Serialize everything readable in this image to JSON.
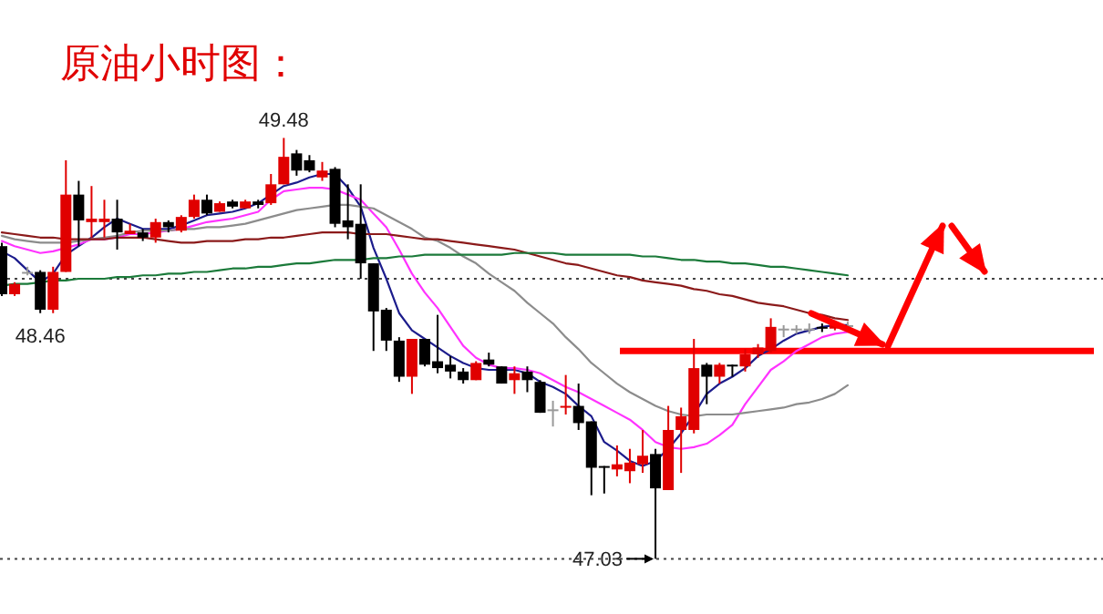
{
  "chart_data": {
    "type": "candlestick",
    "title": "原油小时图：",
    "categories": [
      null,
      null,
      null,
      null,
      null,
      null,
      null,
      null,
      null,
      null,
      null,
      null,
      null,
      null,
      null,
      null,
      null,
      null,
      null,
      null,
      null,
      null,
      null,
      null,
      null,
      null,
      null,
      null,
      null,
      null,
      null,
      null,
      null,
      null,
      null,
      null,
      null,
      null,
      null,
      null,
      null,
      null,
      null,
      null,
      null,
      null,
      null,
      null,
      null,
      null,
      null,
      null,
      null,
      null,
      null,
      null,
      null,
      null,
      null,
      null,
      null,
      null,
      null,
      null,
      null,
      null,
      null
    ],
    "ohlc": [
      [
        48.85,
        48.87,
        48.56,
        48.57
      ],
      [
        48.57,
        48.64,
        48.56,
        48.63
      ],
      [
        48.7,
        48.73,
        48.68,
        48.7
      ],
      [
        48.7,
        48.71,
        48.46,
        48.48
      ],
      [
        48.48,
        48.73,
        48.46,
        48.7
      ],
      [
        48.7,
        49.35,
        48.7,
        49.15
      ],
      [
        49.15,
        49.23,
        48.85,
        49.0
      ],
      [
        48.99,
        49.2,
        48.9,
        49.01
      ],
      [
        48.99,
        49.12,
        48.9,
        49.01
      ],
      [
        49.01,
        49.12,
        48.83,
        48.93
      ],
      [
        48.92,
        48.98,
        48.92,
        48.94
      ],
      [
        48.93,
        48.95,
        48.88,
        48.9
      ],
      [
        48.9,
        49.01,
        48.87,
        48.99
      ],
      [
        48.99,
        49.0,
        48.93,
        48.96
      ],
      [
        48.94,
        49.03,
        48.93,
        49.02
      ],
      [
        49.02,
        49.15,
        49.01,
        49.12
      ],
      [
        49.12,
        49.15,
        49.03,
        49.04
      ],
      [
        49.05,
        49.11,
        49.05,
        49.1
      ],
      [
        49.11,
        49.12,
        49.07,
        49.08
      ],
      [
        49.07,
        49.12,
        49.07,
        49.11
      ],
      [
        49.11,
        49.12,
        49.07,
        49.09
      ],
      [
        49.1,
        49.27,
        49.09,
        49.21
      ],
      [
        49.21,
        49.48,
        49.21,
        49.37
      ],
      [
        49.39,
        49.41,
        49.26,
        49.29
      ],
      [
        49.35,
        49.38,
        49.28,
        49.29
      ],
      [
        49.25,
        49.34,
        49.23,
        49.29
      ],
      [
        49.3,
        49.31,
        48.96,
        48.98
      ],
      [
        49.0,
        49.21,
        48.89,
        48.96
      ],
      [
        48.98,
        49.21,
        48.66,
        48.75
      ],
      [
        48.75,
        48.75,
        48.24,
        48.47
      ],
      [
        48.48,
        48.49,
        48.24,
        48.3
      ],
      [
        48.3,
        48.32,
        48.06,
        48.09
      ],
      [
        48.09,
        48.31,
        47.99,
        48.31
      ],
      [
        48.31,
        48.31,
        48.15,
        48.16
      ],
      [
        48.18,
        48.45,
        48.11,
        48.14
      ],
      [
        48.16,
        48.21,
        48.08,
        48.12
      ],
      [
        48.12,
        48.14,
        48.05,
        48.07
      ],
      [
        48.07,
        48.18,
        48.07,
        48.17
      ],
      [
        48.19,
        48.23,
        48.15,
        48.16
      ],
      [
        48.15,
        48.15,
        48.05,
        48.05
      ],
      [
        48.07,
        48.15,
        47.99,
        48.11
      ],
      [
        48.12,
        48.15,
        48.0,
        48.07
      ],
      [
        48.06,
        48.07,
        47.88,
        47.88
      ],
      [
        47.9,
        47.95,
        47.8,
        47.9
      ],
      [
        47.91,
        48.1,
        47.87,
        47.92
      ],
      [
        47.92,
        48.05,
        47.78,
        47.82
      ],
      [
        47.83,
        47.83,
        47.4,
        47.56
      ],
      [
        47.57,
        47.57,
        47.41,
        47.56
      ],
      [
        47.55,
        47.69,
        47.51,
        47.58
      ],
      [
        47.54,
        47.67,
        47.47,
        47.59
      ],
      [
        47.58,
        47.78,
        47.53,
        47.63
      ],
      [
        47.64,
        47.67,
        47.03,
        47.44
      ],
      [
        47.43,
        47.92,
        47.43,
        47.78
      ],
      [
        47.78,
        47.91,
        47.53,
        47.86
      ],
      [
        47.78,
        48.31,
        47.76,
        48.14
      ],
      [
        48.16,
        48.17,
        47.93,
        48.09
      ],
      [
        48.09,
        48.17,
        48.05,
        48.16
      ],
      [
        48.16,
        48.16,
        48.09,
        48.15
      ],
      [
        48.15,
        48.25,
        48.12,
        48.22
      ],
      [
        48.22,
        48.28,
        48.2,
        48.26
      ],
      [
        48.24,
        48.43,
        48.23,
        48.38
      ],
      [
        48.37,
        48.39,
        48.32,
        48.37
      ],
      [
        48.37,
        48.39,
        48.34,
        48.37
      ],
      [
        48.37,
        48.4,
        48.34,
        48.37
      ],
      [
        48.38,
        48.4,
        48.35,
        48.37
      ],
      [
        48.37,
        48.41,
        48.36,
        48.4
      ],
      [
        48.39,
        48.41,
        48.36,
        48.39
      ]
    ],
    "colors": [
      "#000000",
      "#e00000",
      "#999999",
      "#000000",
      "#e00000",
      "#e00000",
      "#000000",
      "#e00000",
      "#e00000",
      "#000000",
      "#e00000",
      "#000000",
      "#e00000",
      "#000000",
      "#e00000",
      "#e00000",
      "#000000",
      "#e00000",
      "#000000",
      "#e00000",
      "#000000",
      "#e00000",
      "#e00000",
      "#000000",
      "#000000",
      "#e00000",
      "#000000",
      "#000000",
      "#000000",
      "#000000",
      "#000000",
      "#000000",
      "#e00000",
      "#000000",
      "#000000",
      "#000000",
      "#000000",
      "#e00000",
      "#000000",
      "#000000",
      "#e00000",
      "#000000",
      "#000000",
      "#999999",
      "#e00000",
      "#000000",
      "#000000",
      "#000000",
      "#e00000",
      "#e00000",
      "#e00000",
      "#000000",
      "#e00000",
      "#e00000",
      "#e00000",
      "#000000",
      "#e00000",
      "#000000",
      "#e00000",
      "#e00000",
      "#e00000",
      "#999999",
      "#999999",
      "#999999",
      "#000000",
      "#e00000",
      "#999999"
    ],
    "series": [
      {
        "type": "line",
        "color": "#1c1c8c",
        "values": [
          48.82,
          48.78,
          48.71,
          48.64,
          48.69,
          48.8,
          48.85,
          48.9,
          48.96,
          49.01,
          48.98,
          48.95,
          48.95,
          48.95,
          48.97,
          49.0,
          49.03,
          49.04,
          49.05,
          49.07,
          49.1,
          49.15,
          49.2,
          49.22,
          49.25,
          49.27,
          49.27,
          49.19,
          49.08,
          48.84,
          48.66,
          48.46,
          48.36,
          48.31,
          48.26,
          48.21,
          48.17,
          48.14,
          48.13,
          48.13,
          48.13,
          48.11,
          48.06,
          48.03,
          47.99,
          47.92,
          47.86,
          47.71,
          47.66,
          47.6,
          47.57,
          47.6,
          47.67,
          47.76,
          47.87,
          47.99,
          48.05,
          48.09,
          48.14,
          48.21,
          48.25,
          48.3,
          48.34,
          48.36,
          48.38,
          48.39,
          48.39
        ]
      },
      {
        "type": "line",
        "color": "#ff33ff",
        "values": [
          48.88,
          48.85,
          48.83,
          48.81,
          48.82,
          48.84,
          48.86,
          48.89,
          48.89,
          48.9,
          48.92,
          48.92,
          48.93,
          48.94,
          48.95,
          48.97,
          48.99,
          49.0,
          49.01,
          49.03,
          49.05,
          49.12,
          49.17,
          49.18,
          49.19,
          49.19,
          49.18,
          49.15,
          49.12,
          49.04,
          48.96,
          48.83,
          48.69,
          48.58,
          48.49,
          48.38,
          48.27,
          48.2,
          48.16,
          48.14,
          48.14,
          48.13,
          48.11,
          48.07,
          48.03,
          48.0,
          47.96,
          47.92,
          47.88,
          47.84,
          47.78,
          47.71,
          47.68,
          47.67,
          47.68,
          47.7,
          47.75,
          47.81,
          47.93,
          48.03,
          48.13,
          48.18,
          48.24,
          48.28,
          48.32,
          48.34,
          48.35
        ]
      },
      {
        "type": "line",
        "color": "#8c8c8c",
        "values": [
          48.91,
          48.89,
          48.88,
          48.87,
          48.87,
          48.87,
          48.88,
          48.89,
          48.9,
          48.91,
          48.93,
          48.94,
          48.94,
          48.94,
          48.95,
          48.95,
          48.96,
          48.96,
          48.97,
          48.98,
          49.0,
          49.02,
          49.04,
          49.06,
          49.07,
          49.08,
          49.09,
          49.09,
          49.08,
          49.07,
          49.03,
          48.99,
          48.95,
          48.9,
          48.88,
          48.84,
          48.79,
          48.75,
          48.69,
          48.64,
          48.59,
          48.52,
          48.46,
          48.4,
          48.32,
          48.25,
          48.17,
          48.11,
          48.05,
          48.0,
          47.96,
          47.92,
          47.89,
          47.87,
          47.86,
          47.87,
          47.87,
          47.87,
          47.88,
          47.89,
          47.9,
          47.91,
          47.93,
          47.94,
          47.96,
          47.99,
          48.04
        ]
      },
      {
        "type": "line",
        "color": "#8b1a1a",
        "values": [
          48.93,
          48.92,
          48.91,
          48.9,
          48.9,
          48.89,
          48.89,
          48.89,
          48.89,
          48.9,
          48.9,
          48.9,
          48.89,
          48.88,
          48.87,
          48.87,
          48.88,
          48.88,
          48.88,
          48.89,
          48.89,
          48.9,
          48.9,
          48.91,
          48.92,
          48.93,
          48.93,
          48.93,
          48.92,
          48.92,
          48.92,
          48.91,
          48.9,
          48.89,
          48.89,
          48.88,
          48.87,
          48.86,
          48.85,
          48.84,
          48.83,
          48.81,
          48.79,
          48.77,
          48.75,
          48.74,
          48.72,
          48.7,
          48.68,
          48.67,
          48.65,
          48.64,
          48.63,
          48.62,
          48.6,
          48.59,
          48.57,
          48.56,
          48.54,
          48.52,
          48.51,
          48.5,
          48.48,
          48.46,
          48.45,
          48.43,
          48.42
        ]
      },
      {
        "type": "line",
        "color": "#1b7a3a",
        "values": [
          48.62,
          48.63,
          48.63,
          48.64,
          48.65,
          48.65,
          48.66,
          48.66,
          48.66,
          48.67,
          48.67,
          48.68,
          48.68,
          48.69,
          48.69,
          48.7,
          48.7,
          48.71,
          48.72,
          48.72,
          48.73,
          48.73,
          48.74,
          48.75,
          48.75,
          48.76,
          48.77,
          48.77,
          48.77,
          48.78,
          48.78,
          48.79,
          48.79,
          48.8,
          48.8,
          48.8,
          48.8,
          48.8,
          48.8,
          48.8,
          48.81,
          48.81,
          48.81,
          48.81,
          48.8,
          48.8,
          48.8,
          48.8,
          48.8,
          48.8,
          48.79,
          48.79,
          48.78,
          48.77,
          48.77,
          48.76,
          48.76,
          48.75,
          48.75,
          48.74,
          48.73,
          48.73,
          48.72,
          48.71,
          48.7,
          48.69,
          48.68
        ]
      }
    ],
    "ref_lines": [
      {
        "axis": "y",
        "value": 48.66,
        "line_style": "dotted",
        "color": "#444444"
      },
      {
        "axis": "y",
        "value": 47.03,
        "line_style": "dotted",
        "color": "#444444"
      },
      {
        "axis": "y",
        "value": 48.24,
        "line_style": "solid",
        "color": "#ff0000"
      }
    ],
    "annotations": [
      {
        "text": "49.48",
        "y": 49.48
      },
      {
        "text": "48.46",
        "y": 48.46
      },
      {
        "text": "47.03",
        "y": 47.03
      }
    ]
  }
}
